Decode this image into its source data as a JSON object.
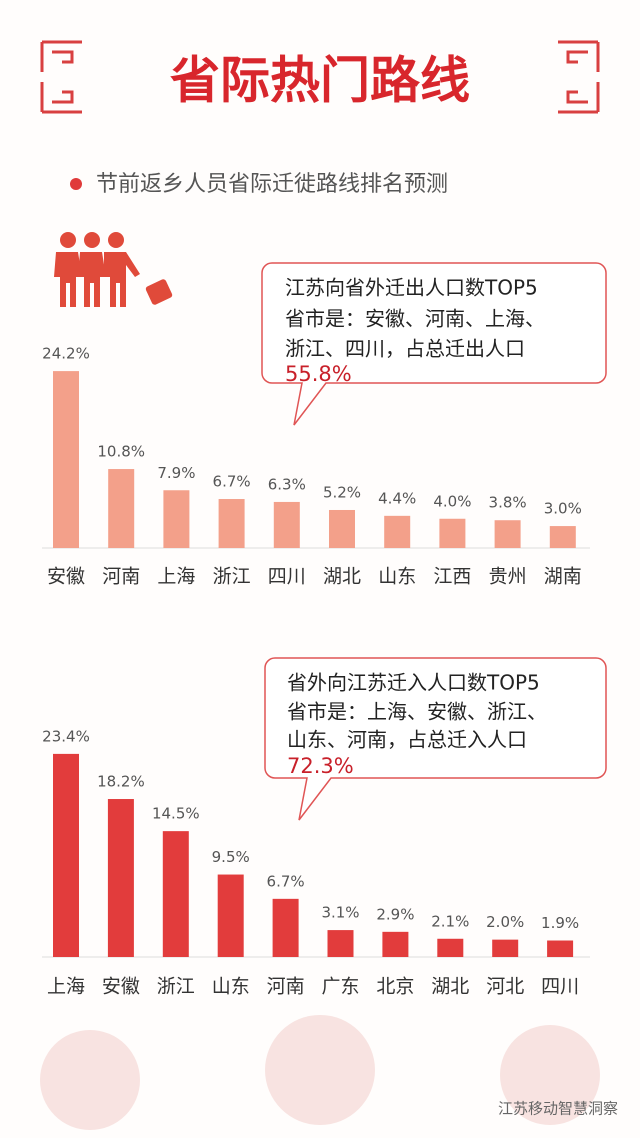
{
  "header": {
    "title": "省际热门路线",
    "subtitle": "节前返乡人员省际迁徙路线排名预测"
  },
  "chart_data": [
    {
      "type": "bar",
      "categories": [
        "安徽",
        "河南",
        "上海",
        "浙江",
        "四川",
        "湖北",
        "山东",
        "江西",
        "贵州",
        "湖南"
      ],
      "values": [
        24.2,
        10.8,
        7.9,
        6.7,
        6.3,
        5.2,
        4.4,
        4.0,
        3.8,
        3.0
      ],
      "value_labels": [
        "24.2%",
        "10.8%",
        "7.9%",
        "6.7%",
        "6.3%",
        "5.2%",
        "4.4%",
        "4.0%",
        "3.8%",
        "3.0%"
      ],
      "color": "#f3a08a",
      "annotation": [
        "江苏向省外迁出人口数TOP5",
        "省市是：安徽、河南、上海、",
        "浙江、四川，占总迁出人口",
        "55.8%"
      ]
    },
    {
      "type": "bar",
      "categories": [
        "上海",
        "安徽",
        "浙江",
        "山东",
        "河南",
        "广东",
        "北京",
        "湖北",
        "河北",
        "四川"
      ],
      "values": [
        23.4,
        18.2,
        14.5,
        9.5,
        6.7,
        3.1,
        2.9,
        2.1,
        2.0,
        1.9
      ],
      "value_labels": [
        "23.4%",
        "18.2%",
        "14.5%",
        "9.5%",
        "6.7%",
        "3.1%",
        "2.9%",
        "2.1%",
        "2.0%",
        "1.9%"
      ],
      "color": "#e23c3c",
      "annotation": [
        "省外向江苏迁入人口数TOP5",
        "省市是：上海、安徽、浙江、",
        "山东、河南，占总迁入人口",
        "72.3%"
      ]
    }
  ],
  "footer": {
    "watermark": "江苏移动智慧洞察"
  }
}
